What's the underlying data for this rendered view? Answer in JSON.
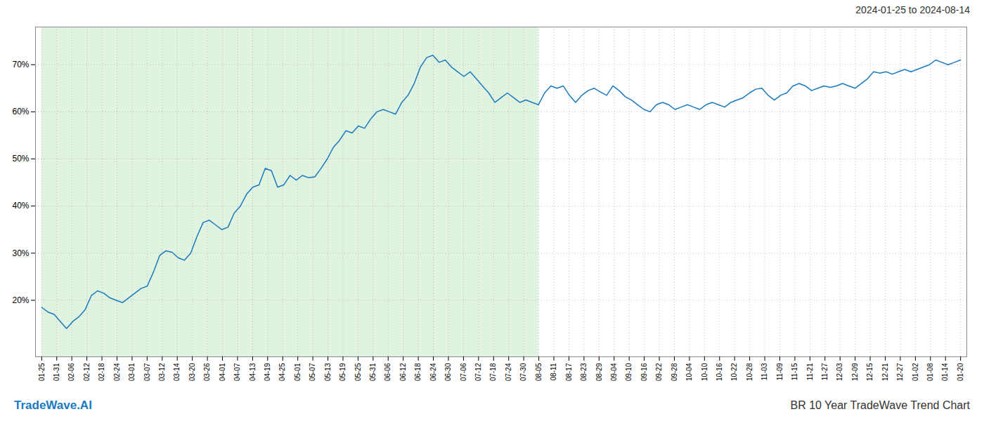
{
  "chart_data": {
    "type": "line",
    "title": "BR 10 Year TradeWave Trend Chart",
    "subtitle": "2024-01-25 to 2024-08-14",
    "annotations": [
      {
        "text": "TradeWave.AI",
        "color": "#1a7abf"
      }
    ],
    "color": "#1a7abf",
    "grid": true,
    "shade": {
      "x": [
        0,
        80.0656
      ],
      "color": "#d0ecd0"
    },
    "xlim": [
      -1,
      149
    ],
    "xticks": [
      {
        "value": 0,
        "label": "01-25"
      },
      {
        "value": 2.4262,
        "label": "01-31"
      },
      {
        "value": 4.8525,
        "label": "02-06"
      },
      {
        "value": 7.2787,
        "label": "02-12"
      },
      {
        "value": 9.7049,
        "label": "02-18"
      },
      {
        "value": 12.1311,
        "label": "02-24"
      },
      {
        "value": 14.5574,
        "label": "03-01"
      },
      {
        "value": 16.9836,
        "label": "03-07"
      },
      {
        "value": 19.4098,
        "label": "03-12"
      },
      {
        "value": 21.8361,
        "label": "03-14"
      },
      {
        "value": 24.2623,
        "label": "03-20"
      },
      {
        "value": 26.6885,
        "label": "03-26"
      },
      {
        "value": 29.1148,
        "label": "04-01"
      },
      {
        "value": 31.541,
        "label": "04-07"
      },
      {
        "value": 33.9672,
        "label": "04-13"
      },
      {
        "value": 36.3934,
        "label": "04-19"
      },
      {
        "value": 38.8197,
        "label": "04-25"
      },
      {
        "value": 41.2459,
        "label": "05-01"
      },
      {
        "value": 43.6721,
        "label": "05-07"
      },
      {
        "value": 46.0984,
        "label": "05-13"
      },
      {
        "value": 48.5246,
        "label": "05-19"
      },
      {
        "value": 50.9508,
        "label": "05-25"
      },
      {
        "value": 53.377,
        "label": "05-31"
      },
      {
        "value": 55.8033,
        "label": "06-06"
      },
      {
        "value": 58.2295,
        "label": "06-12"
      },
      {
        "value": 60.6557,
        "label": "06-18"
      },
      {
        "value": 63.082,
        "label": "06-24"
      },
      {
        "value": 65.5082,
        "label": "06-30"
      },
      {
        "value": 67.9344,
        "label": "07-06"
      },
      {
        "value": 70.3607,
        "label": "07-12"
      },
      {
        "value": 72.7869,
        "label": "07-18"
      },
      {
        "value": 75.2131,
        "label": "07-24"
      },
      {
        "value": 77.6393,
        "label": "07-30"
      },
      {
        "value": 80.0656,
        "label": "08-05"
      },
      {
        "value": 82.4918,
        "label": "08-11"
      },
      {
        "value": 84.918,
        "label": "08-17"
      },
      {
        "value": 87.3443,
        "label": "08-23"
      },
      {
        "value": 89.7705,
        "label": "08-29"
      },
      {
        "value": 92.1967,
        "label": "09-04"
      },
      {
        "value": 94.623,
        "label": "09-10"
      },
      {
        "value": 97.0492,
        "label": "09-16"
      },
      {
        "value": 99.4754,
        "label": "09-22"
      },
      {
        "value": 101.9016,
        "label": "09-28"
      },
      {
        "value": 104.3279,
        "label": "10-04"
      },
      {
        "value": 106.7541,
        "label": "10-10"
      },
      {
        "value": 109.1803,
        "label": "10-16"
      },
      {
        "value": 111.6066,
        "label": "10-22"
      },
      {
        "value": 114.0328,
        "label": "10-28"
      },
      {
        "value": 116.459,
        "label": "11-03"
      },
      {
        "value": 118.8852,
        "label": "11-09"
      },
      {
        "value": 121.3115,
        "label": "11-15"
      },
      {
        "value": 123.7377,
        "label": "11-21"
      },
      {
        "value": 126.1639,
        "label": "11-27"
      },
      {
        "value": 128.5902,
        "label": "12-03"
      },
      {
        "value": 131.0164,
        "label": "12-09"
      },
      {
        "value": 133.4426,
        "label": "12-15"
      },
      {
        "value": 135.8689,
        "label": "12-21"
      },
      {
        "value": 138.2951,
        "label": "12-27"
      },
      {
        "value": 140.7213,
        "label": "01-02"
      },
      {
        "value": 143.1475,
        "label": "01-08"
      },
      {
        "value": 145.5738,
        "label": "01-14"
      },
      {
        "value": 148,
        "label": "01-20"
      }
    ],
    "ylim": [
      8,
      78
    ],
    "yticks": [
      {
        "value": 20,
        "label": "20%"
      },
      {
        "value": 30,
        "label": "30%"
      },
      {
        "value": 40,
        "label": "40%"
      },
      {
        "value": 50,
        "label": "50%"
      },
      {
        "value": 60,
        "label": "60%"
      },
      {
        "value": 70,
        "label": "70%"
      }
    ],
    "values": [
      18.5,
      17.5,
      17.0,
      15.5,
      14.0,
      15.5,
      16.5,
      18.0,
      21.0,
      22.0,
      21.5,
      20.5,
      20.0,
      19.5,
      20.5,
      21.5,
      22.5,
      23.0,
      26.0,
      29.5,
      30.5,
      30.2,
      29.0,
      28.5,
      30.0,
      33.5,
      36.5,
      37.0,
      36.0,
      35.0,
      35.5,
      38.5,
      40.0,
      42.5,
      44.0,
      44.5,
      48.0,
      47.5,
      44.0,
      44.5,
      46.5,
      45.5,
      46.5,
      46.0,
      46.2,
      48.0,
      50.0,
      52.5,
      54.0,
      56.0,
      55.5,
      57.0,
      56.5,
      58.5,
      60.0,
      60.5,
      60.0,
      59.5,
      62.0,
      63.5,
      66.0,
      69.5,
      71.5,
      72.0,
      70.5,
      71.0,
      69.5,
      68.5,
      67.5,
      68.5,
      67.0,
      65.5,
      64.0,
      62.0,
      63.0,
      64.0,
      63.0,
      62.0,
      62.5,
      62.0,
      61.5,
      64.0,
      65.5,
      65.0,
      65.5,
      63.5,
      62.0,
      63.5,
      64.5,
      65.0,
      64.2,
      63.5,
      65.5,
      64.5,
      63.2,
      62.5,
      61.5,
      60.5,
      60.0,
      61.5,
      62.0,
      61.5,
      60.5,
      61.0,
      61.5,
      61.0,
      60.5,
      61.5,
      62.0,
      61.5,
      61.0,
      62.0,
      62.5,
      63.0,
      64.0,
      64.8,
      65.0,
      63.5,
      62.5,
      63.5,
      64.0,
      65.5,
      66.0,
      65.5,
      64.5,
      65.0,
      65.5,
      65.2,
      65.5,
      66.0,
      65.5,
      65.0,
      66.0,
      67.0,
      68.5,
      68.2,
      68.5,
      68.0,
      68.5,
      69.0,
      68.5,
      69.0,
      69.5,
      70.0,
      71.0,
      70.5,
      70.0,
      70.5,
      71.0
    ]
  }
}
